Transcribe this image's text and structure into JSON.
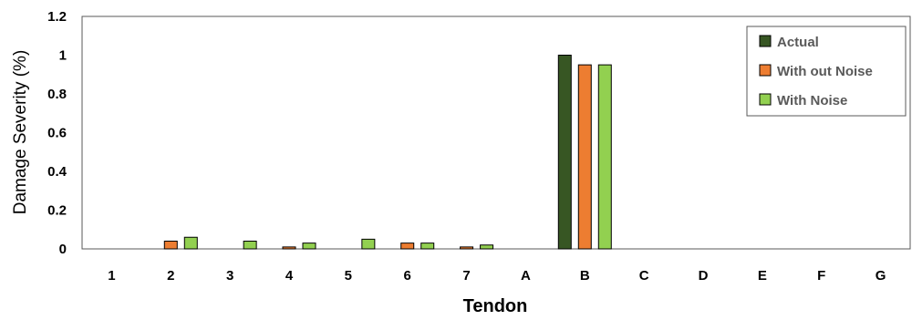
{
  "chart_data": {
    "type": "bar",
    "xlabel": "Tendon",
    "ylabel": "Damage Severity (%)",
    "ylim": [
      0,
      1.2
    ],
    "yticks": [
      "0",
      "0.2",
      "0.4",
      "0.6",
      "0.8",
      "1",
      "1.2"
    ],
    "categories": [
      "1",
      "2",
      "3",
      "4",
      "5",
      "6",
      "7",
      "A",
      "B",
      "C",
      "D",
      "E",
      "F",
      "G"
    ],
    "legend_position": "top-right",
    "grid": false,
    "series": [
      {
        "name": "Actual",
        "color": "#375623",
        "values": [
          0,
          0,
          0,
          0,
          0,
          0,
          0,
          0,
          1.0,
          0,
          0,
          0,
          0,
          0
        ]
      },
      {
        "name": "With out Noise",
        "color": "#ED7D31",
        "values": [
          0,
          0.04,
          0,
          0.01,
          0,
          0.03,
          0.01,
          0,
          0.95,
          0,
          0,
          0,
          0,
          0
        ]
      },
      {
        "name": "With Noise",
        "color": "#92D050",
        "values": [
          0,
          0.06,
          0.04,
          0.03,
          0.05,
          0.03,
          0.02,
          0,
          0.95,
          0,
          0,
          0,
          0,
          0
        ]
      }
    ]
  }
}
